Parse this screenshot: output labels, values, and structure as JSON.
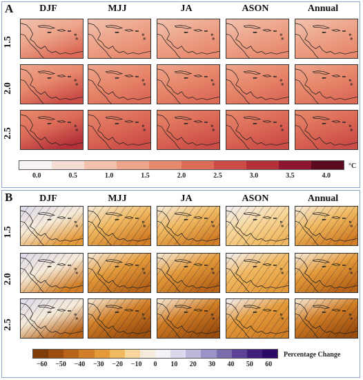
{
  "panels": [
    {
      "letter": "A",
      "columns": [
        "DJF",
        "MJJ",
        "JA",
        "ASON",
        "Annual"
      ],
      "rows": [
        "1.5",
        "2.0",
        "2.5"
      ],
      "colorbar": {
        "tick_labels": [
          "0.0",
          "0.5",
          "1.0",
          "1.5",
          "2.0",
          "2.5",
          "3.0",
          "3.5",
          "4.0"
        ],
        "unit": "°C",
        "colors": [
          "#f7f4f3",
          "#f6ddd4",
          "#f2c1ae",
          "#eda58b",
          "#e7896d",
          "#dc6b57",
          "#cc4d47",
          "#b4313a",
          "#8e1530",
          "#5c0a1f"
        ]
      }
    },
    {
      "letter": "B",
      "columns": [
        "DJF",
        "MJJ",
        "JA",
        "ASON",
        "Annual"
      ],
      "rows": [
        "1.5",
        "2.0",
        "2.5"
      ],
      "colorbar": {
        "tick_labels": [
          "−60",
          "−50",
          "−40",
          "−30",
          "−20",
          "−10",
          "0",
          "10",
          "20",
          "30",
          "40",
          "50",
          "60"
        ],
        "unit": "Percentage Change",
        "colors": [
          "#7f3b08",
          "#9c4e0f",
          "#b8651a",
          "#d17e27",
          "#e49a3b",
          "#f0b860",
          "#f8d79d",
          "#f6ead8",
          "#f3f1f6",
          "#dcd9ec",
          "#bcb8dc",
          "#9b93c6",
          "#7b6cae",
          "#5c4596",
          "#3f1f7e",
          "#2d0a66"
        ]
      }
    }
  ]
}
